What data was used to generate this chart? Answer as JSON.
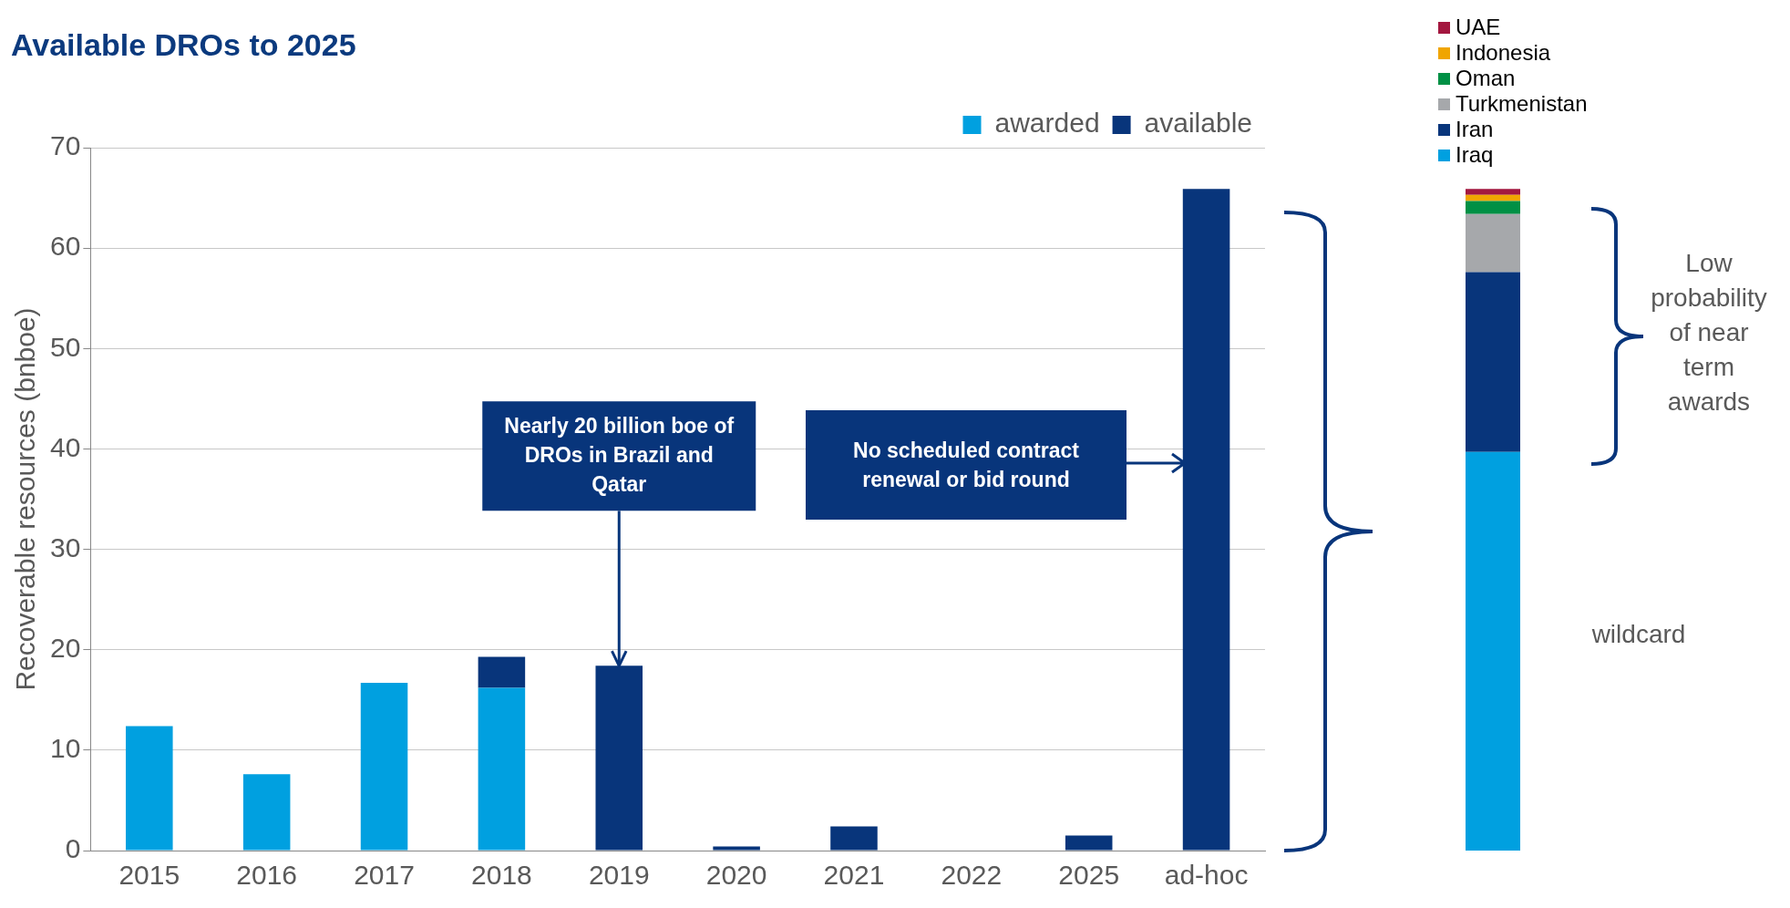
{
  "chart_data": [
    {
      "type": "bar",
      "title": "Available DROs to 2025",
      "ylabel": "Recoverable resources (bnboe)",
      "categories": [
        "2015",
        "2016",
        "2017",
        "2018",
        "2019",
        "2020",
        "2021",
        "2022",
        "2025",
        "ad-hoc"
      ],
      "stacked": true,
      "series": [
        {
          "name": "awarded",
          "color": "#00a0e0",
          "values": [
            12.4,
            7.6,
            16.7,
            16.2,
            0,
            0,
            0,
            0,
            0,
            0
          ]
        },
        {
          "name": "available",
          "color": "#08357b",
          "values": [
            0,
            0,
            0,
            3.1,
            18.4,
            0.4,
            2.4,
            0,
            1.5,
            65.9
          ]
        }
      ],
      "ylim": [
        0,
        70
      ],
      "yticks": [
        0,
        10,
        20,
        30,
        40,
        50,
        60,
        70
      ],
      "grid": "y",
      "legend": "top right",
      "annotations": [
        {
          "text": "Nearly 20 billion boe of DROs in Brazil and Qatar",
          "x": "2019",
          "y": 18.4
        },
        "No scheduled contract renewal or bid round"
      ]
    },
    {
      "type": "bar",
      "categories": [
        null
      ],
      "stacked": true,
      "ylim": [
        0,
        70
      ],
      "yticks": [
        0,
        10,
        20,
        30,
        40,
        50,
        60,
        70
      ],
      "tick_labels": false,
      "legend": "top right",
      "series": [
        {
          "name": "Iraq",
          "color": "#00a0e0",
          "values": [
            39.7
          ]
        },
        {
          "name": "Iran",
          "color": "#08357b",
          "values": [
            17.9
          ]
        },
        {
          "name": "Turkmenistan",
          "color": "#a6a8ab",
          "values": [
            5.8
          ]
        },
        {
          "name": "Oman",
          "color": "#009045",
          "values": [
            1.3
          ]
        },
        {
          "name": "Indonesia",
          "color": "#f0a500",
          "values": [
            0.6
          ]
        },
        {
          "name": "UAE",
          "color": "#a3173f",
          "values": [
            0.6
          ]
        }
      ],
      "annotations": [
        "Low probability of near term awards",
        "wildcard"
      ]
    }
  ]
}
